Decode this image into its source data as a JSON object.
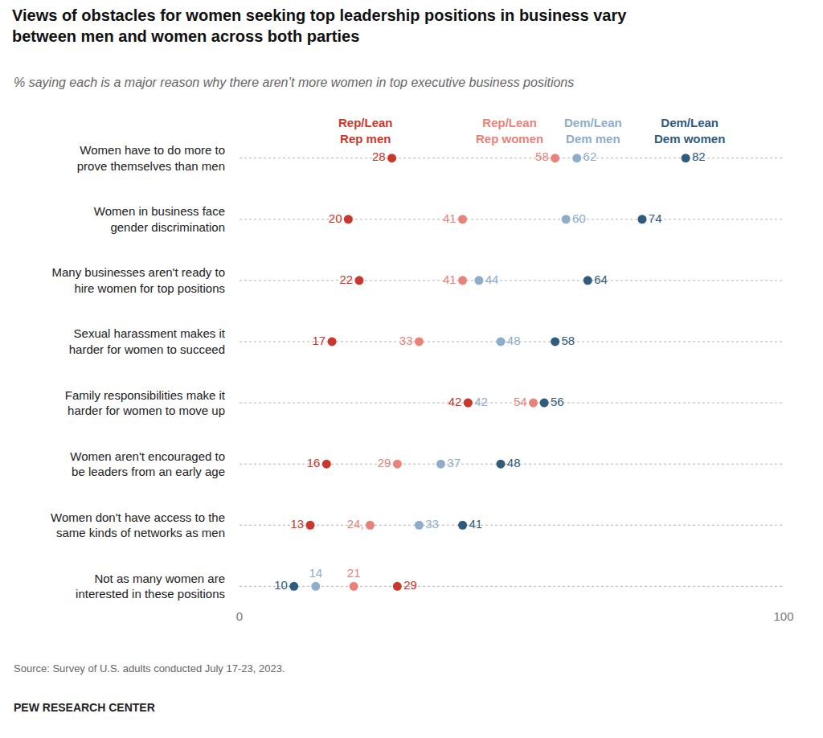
{
  "chart_data": {
    "type": "dot",
    "title": "Views of obstacles for women seeking top leadership positions in business vary\nbetween men and women across both parties",
    "subtitle": "% saying each is a major reason why there aren’t more women in top executive business positions",
    "source": "Source: Survey of U.S. adults conducted July 17-23, 2023.",
    "credit": "PEW RESEARCH CENTER",
    "categories": [
      "Women have to do more to\nprove themselves than men",
      "Women in business face\ngender discrimination",
      "Many businesses aren't ready to\nhire women for top positions",
      "Sexual harassment makes it\nharder for women to succeed",
      "Family responsibilities make it\nharder for women to move up",
      "Women aren't encouraged to\nbe leaders from an early age",
      "Women don't have access to the\nsame kinds of networks as men",
      "Not as many women are\ninterested in these positions"
    ],
    "series": [
      {
        "name": "Rep/Lean Rep men",
        "color": "#c8382c",
        "values": [
          28,
          20,
          22,
          17,
          42,
          16,
          13,
          29
        ]
      },
      {
        "name": "Rep/Lean Rep women",
        "color": "#e8837a",
        "values": [
          58,
          41,
          41,
          33,
          54,
          29,
          24,
          21
        ],
        "value_labels": [
          "58",
          "41",
          "41",
          "33",
          "54",
          "29",
          "24,",
          "21"
        ]
      },
      {
        "name": "Dem/Lean Dem men",
        "color": "#8dadca",
        "values": [
          62,
          60,
          44,
          48,
          42,
          37,
          33,
          14
        ]
      },
      {
        "name": "Dem/Lean Dem women",
        "color": "#2f5b7c",
        "values": [
          82,
          74,
          64,
          58,
          56,
          48,
          41,
          10
        ]
      }
    ],
    "xlim": [
      0,
      100
    ],
    "xticks": [
      0,
      100
    ],
    "grid": false,
    "data_labels": true
  }
}
